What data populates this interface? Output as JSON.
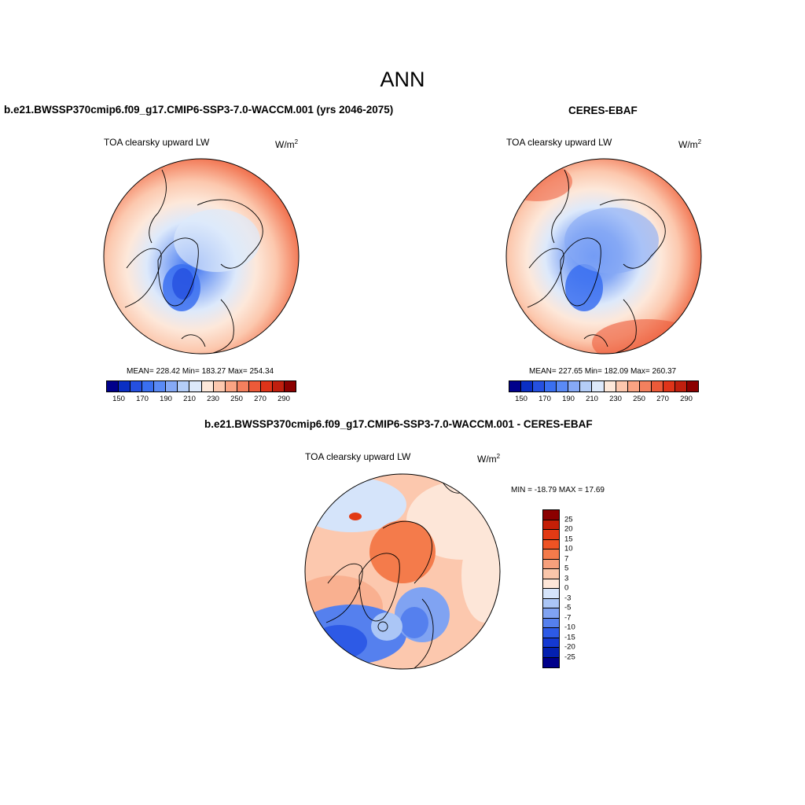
{
  "title": "ANN",
  "panels": {
    "model": {
      "title": "b.e21.BWSSP370cmip6.f09_g17.CMIP6-SSP3-7.0-WACCM.001 (yrs 2046-2075)",
      "variable": "TOA clearsky upward LW",
      "units_base": "W/m",
      "units_exp": "2",
      "stats": "MEAN= 228.42  Min= 183.27  Max= 254.34"
    },
    "obs": {
      "title": "CERES-EBAF",
      "variable": "TOA clearsky upward LW",
      "units_base": "W/m",
      "units_exp": "2",
      "stats": "MEAN= 227.65  Min= 182.09  Max= 260.37"
    },
    "diff": {
      "title": "b.e21.BWSSP370cmip6.f09_g17.CMIP6-SSP3-7.0-WACCM.001 - CERES-EBAF",
      "variable": "TOA clearsky upward LW",
      "units_base": "W/m",
      "units_exp": "2",
      "stats": "MIN = -18.79 MAX =  17.69"
    }
  },
  "colorbar_abs": {
    "colors": [
      "#00008b",
      "#0b2fc4",
      "#2550e0",
      "#3a6ff0",
      "#5a8af5",
      "#86a9f5",
      "#b4cdf7",
      "#dde9fb",
      "#fde8da",
      "#fcc8ae",
      "#faa483",
      "#f3805e",
      "#ec5a39",
      "#df3419",
      "#c01f0e",
      "#8b0000"
    ],
    "tick_labels": [
      "150",
      "170",
      "190",
      "210",
      "230",
      "250",
      "270",
      "290"
    ]
  },
  "colorbar_diff": {
    "colors": [
      "#8b0000",
      "#c41f07",
      "#e23a14",
      "#ee5324",
      "#f47b4b",
      "#f7a07c",
      "#fac6aa",
      "#fde6d8",
      "#d5e4fa",
      "#abc6f6",
      "#80a3f2",
      "#5580ee",
      "#2d5ae6",
      "#1439d2",
      "#0420b0",
      "#00008b"
    ],
    "tick_labels": [
      "25",
      "20",
      "15",
      "10",
      "7",
      "5",
      "3",
      "0",
      "-3",
      "-5",
      "-7",
      "-10",
      "-15",
      "-20",
      "-25"
    ]
  }
}
